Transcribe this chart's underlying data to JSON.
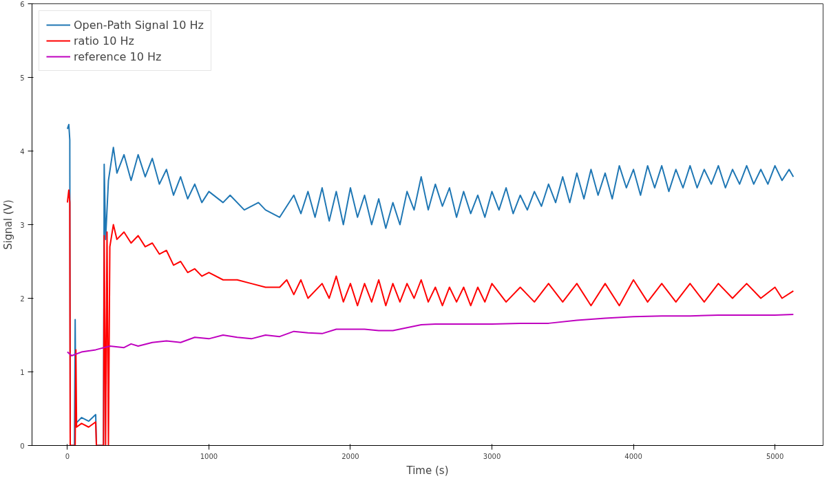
{
  "chart_data": {
    "type": "line",
    "xlabel": "Time (s)",
    "ylabel": "Signal (V)",
    "xlim": [
      -250,
      5340
    ],
    "ylim": [
      0,
      6
    ],
    "xticks": [
      0,
      1000,
      2000,
      3000,
      4000,
      5000
    ],
    "yticks": [
      0,
      1,
      2,
      3,
      4,
      5,
      6
    ],
    "grid": false,
    "legend": "top left",
    "marker": "none",
    "line_style": "solid",
    "series": [
      {
        "name": "Open-Path Signal 10 Hz",
        "color": "#1f77b4",
        "x": [
          0,
          10,
          17,
          20,
          50,
          55,
          60,
          100,
          150,
          200,
          205,
          255,
          260,
          270,
          290,
          325,
          350,
          400,
          450,
          500,
          550,
          600,
          650,
          700,
          750,
          800,
          850,
          900,
          950,
          1000,
          1100,
          1150,
          1250,
          1350,
          1400,
          1500,
          1550,
          1600,
          1650,
          1700,
          1750,
          1800,
          1850,
          1900,
          1950,
          2000,
          2050,
          2100,
          2150,
          2200,
          2250,
          2300,
          2350,
          2400,
          2450,
          2500,
          2550,
          2600,
          2650,
          2700,
          2750,
          2800,
          2850,
          2900,
          2950,
          3000,
          3050,
          3100,
          3150,
          3200,
          3250,
          3300,
          3350,
          3400,
          3450,
          3500,
          3550,
          3600,
          3650,
          3700,
          3750,
          3800,
          3850,
          3900,
          3950,
          4000,
          4050,
          4100,
          4150,
          4200,
          4250,
          4300,
          4350,
          4400,
          4450,
          4500,
          4550,
          4600,
          4650,
          4700,
          4750,
          4800,
          4850,
          4900,
          4950,
          5000,
          5050,
          5100,
          5130
        ],
        "values": [
          4.3,
          4.36,
          4.15,
          0,
          0,
          1.71,
          0.3,
          0.38,
          0.33,
          0.42,
          0,
          0,
          3.82,
          2.8,
          3.6,
          4.05,
          3.7,
          3.95,
          3.6,
          3.95,
          3.65,
          3.9,
          3.55,
          3.75,
          3.4,
          3.65,
          3.35,
          3.55,
          3.3,
          3.45,
          3.3,
          3.4,
          3.2,
          3.3,
          3.2,
          3.1,
          3.25,
          3.4,
          3.15,
          3.45,
          3.1,
          3.5,
          3.05,
          3.45,
          3.0,
          3.5,
          3.1,
          3.4,
          3.0,
          3.35,
          2.95,
          3.3,
          3.0,
          3.45,
          3.2,
          3.65,
          3.2,
          3.55,
          3.25,
          3.5,
          3.1,
          3.45,
          3.15,
          3.4,
          3.1,
          3.45,
          3.2,
          3.5,
          3.15,
          3.4,
          3.2,
          3.45,
          3.25,
          3.55,
          3.3,
          3.65,
          3.3,
          3.7,
          3.35,
          3.75,
          3.4,
          3.7,
          3.35,
          3.8,
          3.5,
          3.75,
          3.4,
          3.8,
          3.5,
          3.8,
          3.45,
          3.75,
          3.5,
          3.8,
          3.5,
          3.75,
          3.55,
          3.8,
          3.5,
          3.75,
          3.55,
          3.8,
          3.55,
          3.75,
          3.55,
          3.8,
          3.6,
          3.75,
          3.65
        ]
      },
      {
        "name": "ratio 10 Hz",
        "color": "#ff0000",
        "x": [
          0,
          10,
          17,
          20,
          55,
          60,
          65,
          100,
          150,
          200,
          205,
          255,
          260,
          270,
          280,
          290,
          300,
          325,
          350,
          400,
          450,
          500,
          550,
          600,
          650,
          700,
          750,
          800,
          850,
          900,
          950,
          1000,
          1100,
          1200,
          1300,
          1400,
          1500,
          1550,
          1600,
          1650,
          1700,
          1800,
          1850,
          1900,
          1950,
          2000,
          2050,
          2100,
          2150,
          2200,
          2250,
          2300,
          2350,
          2400,
          2450,
          2500,
          2550,
          2600,
          2650,
          2700,
          2750,
          2800,
          2850,
          2900,
          2950,
          3000,
          3100,
          3200,
          3300,
          3400,
          3500,
          3600,
          3700,
          3800,
          3900,
          4000,
          4100,
          4200,
          4300,
          4400,
          4500,
          4600,
          4700,
          4800,
          4900,
          5000,
          5050,
          5130
        ],
        "values": [
          3.3,
          3.47,
          3.3,
          0,
          0,
          1.3,
          0.25,
          0.3,
          0.25,
          0.32,
          0,
          0,
          2.85,
          0,
          2.9,
          0,
          2.7,
          3.0,
          2.8,
          2.9,
          2.75,
          2.85,
          2.7,
          2.75,
          2.6,
          2.65,
          2.45,
          2.5,
          2.35,
          2.4,
          2.3,
          2.35,
          2.25,
          2.25,
          2.2,
          2.15,
          2.15,
          2.25,
          2.05,
          2.25,
          2.0,
          2.2,
          2.0,
          2.3,
          1.95,
          2.2,
          1.9,
          2.2,
          1.95,
          2.25,
          1.9,
          2.2,
          1.95,
          2.2,
          2.0,
          2.25,
          1.95,
          2.15,
          1.9,
          2.15,
          1.95,
          2.15,
          1.9,
          2.15,
          1.95,
          2.2,
          1.95,
          2.15,
          1.95,
          2.2,
          1.95,
          2.2,
          1.9,
          2.2,
          1.9,
          2.25,
          1.95,
          2.2,
          1.95,
          2.2,
          1.95,
          2.2,
          2.0,
          2.2,
          2.0,
          2.15,
          2.0,
          2.1
        ]
      },
      {
        "name": "reference 10 Hz",
        "color": "#bf00bf",
        "x": [
          0,
          30,
          100,
          200,
          300,
          400,
          450,
          500,
          600,
          700,
          800,
          900,
          1000,
          1100,
          1200,
          1300,
          1400,
          1500,
          1600,
          1700,
          1800,
          1900,
          2000,
          2100,
          2200,
          2300,
          2400,
          2500,
          2600,
          2800,
          3000,
          3200,
          3400,
          3600,
          3800,
          4000,
          4200,
          4400,
          4600,
          4800,
          5000,
          5130
        ],
        "values": [
          1.27,
          1.22,
          1.27,
          1.3,
          1.35,
          1.33,
          1.38,
          1.35,
          1.4,
          1.42,
          1.4,
          1.47,
          1.45,
          1.5,
          1.47,
          1.45,
          1.5,
          1.48,
          1.55,
          1.53,
          1.52,
          1.58,
          1.58,
          1.58,
          1.56,
          1.56,
          1.6,
          1.64,
          1.65,
          1.65,
          1.65,
          1.66,
          1.66,
          1.7,
          1.73,
          1.75,
          1.76,
          1.76,
          1.77,
          1.77,
          1.77,
          1.78
        ]
      }
    ]
  }
}
